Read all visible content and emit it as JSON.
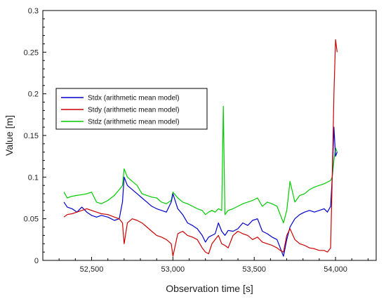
{
  "chart_data": {
    "type": "line",
    "title": "",
    "xlabel": "Observation time [s]",
    "ylabel": "Value [m]",
    "xlim": [
      52200,
      54250
    ],
    "ylim": [
      0,
      0.3
    ],
    "x_ticks": [
      52500,
      53000,
      53500,
      54000
    ],
    "x_tick_labels": [
      "52,500",
      "53,000",
      "53,500",
      "54,000"
    ],
    "y_ticks": [
      0,
      0.05,
      0.1,
      0.15,
      0.2,
      0.25,
      0.3
    ],
    "y_tick_labels": [
      "0",
      "0.05",
      "0.1",
      "0.15",
      "0.2",
      "0.25",
      "0.3"
    ],
    "grid": false,
    "legend_position": "upper-left",
    "series": [
      {
        "name": "Stdx (arithmetic mean model)",
        "color": "#0000cc",
        "x": [
          52330,
          52350,
          52380,
          52410,
          52440,
          52470,
          52500,
          52530,
          52560,
          52600,
          52640,
          52670,
          52690,
          52700,
          52720,
          52750,
          52780,
          52810,
          52840,
          52870,
          52900,
          52930,
          52960,
          52990,
          53000,
          53030,
          53060,
          53090,
          53120,
          53150,
          53180,
          53200,
          53220,
          53240,
          53260,
          53280,
          53300,
          53320,
          53340,
          53370,
          53400,
          53430,
          53460,
          53490,
          53520,
          53550,
          53580,
          53610,
          53640,
          53660,
          53680,
          53700,
          53720,
          53750,
          53780,
          53810,
          53840,
          53870,
          53900,
          53930,
          53950,
          53970,
          53980,
          53990,
          54000,
          54010
        ],
        "y": [
          0.07,
          0.064,
          0.062,
          0.058,
          0.064,
          0.058,
          0.054,
          0.052,
          0.054,
          0.052,
          0.048,
          0.05,
          0.07,
          0.1,
          0.09,
          0.085,
          0.08,
          0.075,
          0.07,
          0.065,
          0.062,
          0.06,
          0.058,
          0.07,
          0.08,
          0.062,
          0.055,
          0.045,
          0.042,
          0.038,
          0.03,
          0.022,
          0.028,
          0.03,
          0.032,
          0.045,
          0.035,
          0.03,
          0.036,
          0.035,
          0.038,
          0.045,
          0.042,
          0.048,
          0.05,
          0.035,
          0.032,
          0.028,
          0.025,
          0.015,
          0.005,
          0.025,
          0.04,
          0.05,
          0.055,
          0.058,
          0.06,
          0.058,
          0.06,
          0.062,
          0.058,
          0.065,
          0.1,
          0.16,
          0.125,
          0.13
        ]
      },
      {
        "name": "Stdy (arithmetic mean model)",
        "color": "#cc0000",
        "x": [
          52330,
          52350,
          52380,
          52410,
          52440,
          52470,
          52500,
          52530,
          52560,
          52600,
          52640,
          52670,
          52690,
          52700,
          52720,
          52750,
          52780,
          52810,
          52840,
          52870,
          52900,
          52930,
          52960,
          52990,
          53000,
          53030,
          53060,
          53090,
          53120,
          53150,
          53180,
          53200,
          53220,
          53240,
          53260,
          53280,
          53300,
          53320,
          53340,
          53370,
          53400,
          53430,
          53460,
          53490,
          53520,
          53550,
          53580,
          53610,
          53640,
          53660,
          53680,
          53700,
          53720,
          53750,
          53780,
          53810,
          53840,
          53870,
          53900,
          53930,
          53950,
          53970,
          53980,
          53990,
          54000,
          54010
        ],
        "y": [
          0.052,
          0.055,
          0.056,
          0.058,
          0.06,
          0.062,
          0.06,
          0.058,
          0.056,
          0.055,
          0.052,
          0.05,
          0.045,
          0.02,
          0.045,
          0.05,
          0.048,
          0.045,
          0.04,
          0.035,
          0.03,
          0.028,
          0.025,
          0.02,
          0.005,
          0.032,
          0.035,
          0.03,
          0.028,
          0.025,
          0.015,
          0.01,
          0.008,
          0.02,
          0.025,
          0.03,
          0.02,
          0.018,
          0.015,
          0.03,
          0.035,
          0.032,
          0.03,
          0.025,
          0.028,
          0.022,
          0.02,
          0.018,
          0.015,
          0.012,
          0.01,
          0.03,
          0.038,
          0.025,
          0.02,
          0.018,
          0.015,
          0.014,
          0.012,
          0.012,
          0.01,
          0.015,
          0.1,
          0.2,
          0.265,
          0.25
        ]
      },
      {
        "name": "Stdz (arithmetic mean model)",
        "color": "#00cc00",
        "x": [
          52330,
          52350,
          52380,
          52410,
          52440,
          52470,
          52500,
          52530,
          52560,
          52600,
          52640,
          52670,
          52690,
          52700,
          52720,
          52750,
          52780,
          52810,
          52840,
          52870,
          52900,
          52930,
          52960,
          52990,
          53000,
          53030,
          53060,
          53090,
          53120,
          53150,
          53180,
          53200,
          53220,
          53240,
          53260,
          53280,
          53300,
          53310,
          53320,
          53340,
          53370,
          53400,
          53430,
          53460,
          53490,
          53520,
          53550,
          53580,
          53610,
          53640,
          53660,
          53680,
          53700,
          53720,
          53750,
          53780,
          53810,
          53840,
          53870,
          53900,
          53930,
          53950,
          53970,
          53980,
          53990,
          54000,
          54010
        ],
        "y": [
          0.082,
          0.075,
          0.077,
          0.078,
          0.079,
          0.08,
          0.082,
          0.07,
          0.068,
          0.072,
          0.078,
          0.085,
          0.09,
          0.11,
          0.1,
          0.095,
          0.09,
          0.08,
          0.078,
          0.076,
          0.075,
          0.07,
          0.068,
          0.072,
          0.082,
          0.075,
          0.07,
          0.068,
          0.065,
          0.062,
          0.06,
          0.055,
          0.058,
          0.06,
          0.058,
          0.062,
          0.06,
          0.185,
          0.055,
          0.06,
          0.062,
          0.065,
          0.068,
          0.07,
          0.072,
          0.075,
          0.065,
          0.07,
          0.068,
          0.065,
          0.055,
          0.045,
          0.06,
          0.095,
          0.07,
          0.078,
          0.08,
          0.085,
          0.088,
          0.09,
          0.092,
          0.094,
          0.096,
          0.1,
          0.12,
          0.135,
          0.13
        ]
      }
    ]
  }
}
